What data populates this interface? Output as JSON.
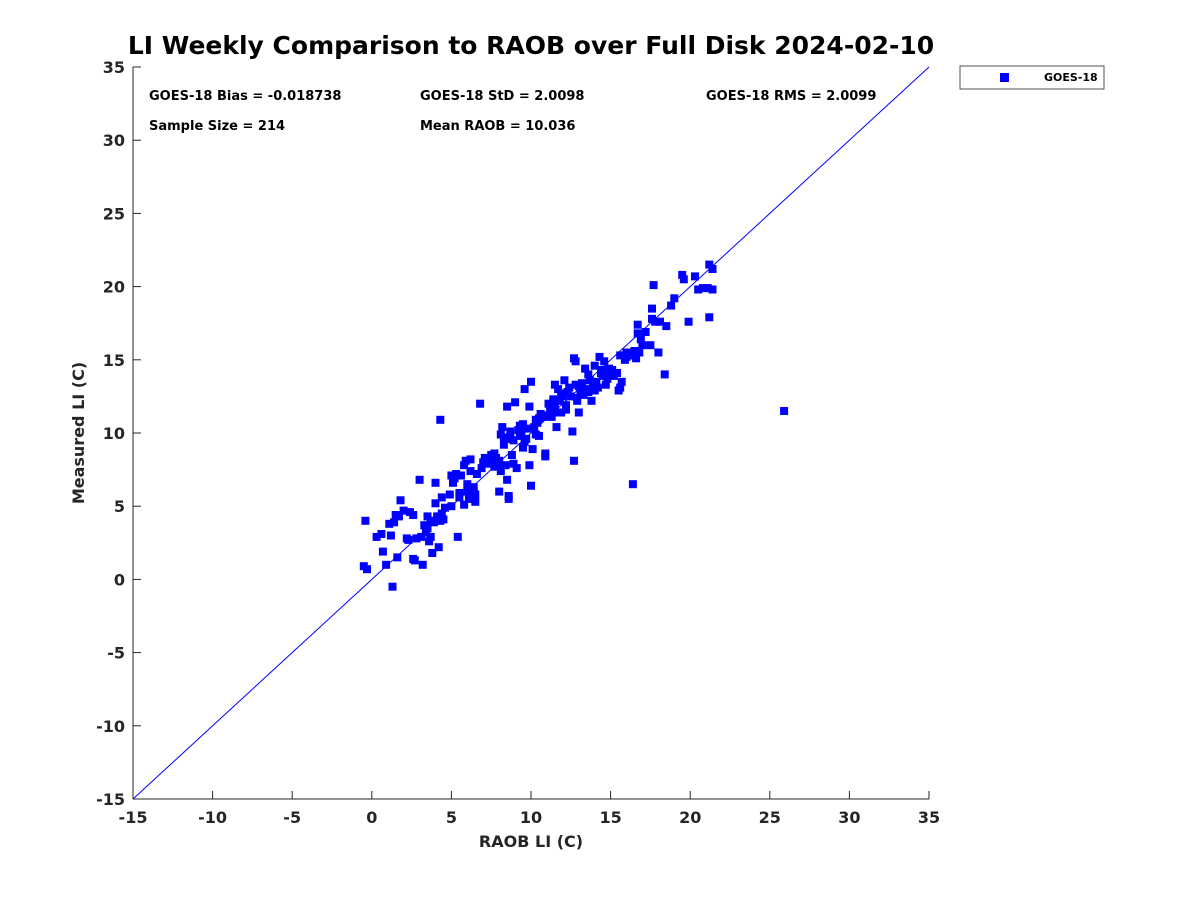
{
  "chart_data": {
    "type": "scatter",
    "title": "LI Weekly Comparison to RAOB over Full Disk 2024-02-10",
    "xlabel": "RAOB LI (C)",
    "ylabel": "Measured LI (C)",
    "xlim": [
      -15,
      35
    ],
    "ylim": [
      -15,
      35
    ],
    "xticks": [
      -15,
      -10,
      -5,
      0,
      5,
      10,
      15,
      20,
      25,
      30,
      35
    ],
    "yticks": [
      -15,
      -10,
      -5,
      0,
      5,
      10,
      15,
      20,
      25,
      30,
      35
    ],
    "grid": false,
    "legend_position": "top-right (outside axes)",
    "reference_line": {
      "from": [
        -15,
        -15
      ],
      "to": [
        35,
        35
      ],
      "color": "#0000ff"
    },
    "marker_color": "#0000ff",
    "stats": {
      "bias": "GOES-18 Bias = -0.018738",
      "std": "GOES-18 StD = 2.0098",
      "rms": "GOES-18 RMS = 2.0099",
      "sample_size": "Sample Size = 214",
      "mean_raob": "Mean RAOB = 10.036"
    },
    "series": [
      {
        "name": "GOES-18",
        "color": "#0000ff",
        "points": [
          [
            -0.5,
            0.9
          ],
          [
            -0.3,
            0.7
          ],
          [
            -0.4,
            4.0
          ],
          [
            0.3,
            2.9
          ],
          [
            0.6,
            3.1
          ],
          [
            0.7,
            1.9
          ],
          [
            0.9,
            1.0
          ],
          [
            1.1,
            3.8
          ],
          [
            1.2,
            3.0
          ],
          [
            1.3,
            -0.5
          ],
          [
            1.4,
            3.9
          ],
          [
            1.5,
            4.4
          ],
          [
            1.6,
            1.5
          ],
          [
            1.7,
            4.3
          ],
          [
            1.8,
            5.4
          ],
          [
            2.0,
            4.7
          ],
          [
            2.3,
            2.7
          ],
          [
            2.4,
            4.6
          ],
          [
            2.6,
            4.4
          ],
          [
            2.6,
            1.4
          ],
          [
            2.7,
            1.3
          ],
          [
            2.8,
            2.8
          ],
          [
            3.0,
            6.8
          ],
          [
            3.1,
            2.9
          ],
          [
            3.2,
            1.0
          ],
          [
            3.3,
            3.7
          ],
          [
            3.4,
            3.2
          ],
          [
            3.5,
            4.3
          ],
          [
            3.6,
            2.6
          ],
          [
            3.7,
            2.9
          ],
          [
            3.7,
            4.0
          ],
          [
            3.8,
            1.8
          ],
          [
            3.9,
            3.9
          ],
          [
            4.0,
            5.2
          ],
          [
            4.0,
            6.6
          ],
          [
            4.1,
            4.3
          ],
          [
            4.2,
            2.2
          ],
          [
            4.3,
            4.0
          ],
          [
            4.3,
            10.9
          ],
          [
            4.4,
            4.5
          ],
          [
            4.5,
            4.1
          ],
          [
            4.9,
            5.8
          ],
          [
            5.0,
            5.0
          ],
          [
            5.0,
            7.1
          ],
          [
            5.1,
            6.6
          ],
          [
            5.2,
            6.9
          ],
          [
            5.3,
            7.2
          ],
          [
            5.5,
            5.6
          ],
          [
            5.4,
            2.9
          ],
          [
            5.6,
            7.1
          ],
          [
            5.8,
            5.1
          ],
          [
            5.8,
            7.8
          ],
          [
            5.9,
            8.1
          ],
          [
            6.0,
            6.0
          ],
          [
            6.1,
            5.5
          ],
          [
            6.2,
            7.4
          ],
          [
            6.2,
            8.2
          ],
          [
            6.3,
            5.7
          ],
          [
            6.4,
            5.9
          ],
          [
            6.4,
            6.3
          ],
          [
            6.5,
            5.3
          ],
          [
            6.5,
            5.8
          ],
          [
            6.6,
            7.2
          ],
          [
            6.8,
            12.0
          ],
          [
            7.0,
            8.0
          ],
          [
            7.1,
            8.3
          ],
          [
            7.3,
            8.1
          ],
          [
            7.4,
            7.9
          ],
          [
            7.5,
            8.5
          ],
          [
            7.6,
            8.0
          ],
          [
            7.7,
            7.7
          ],
          [
            7.8,
            8.3
          ],
          [
            7.9,
            7.9
          ],
          [
            8.0,
            8.1
          ],
          [
            8.0,
            6.0
          ],
          [
            8.1,
            7.4
          ],
          [
            8.1,
            9.9
          ],
          [
            8.2,
            10.4
          ],
          [
            8.3,
            9.2
          ],
          [
            8.4,
            7.8
          ],
          [
            8.5,
            11.8
          ],
          [
            8.5,
            6.8
          ],
          [
            8.6,
            5.5
          ],
          [
            8.6,
            5.7
          ],
          [
            8.7,
            9.6
          ],
          [
            8.7,
            10.1
          ],
          [
            8.8,
            8.5
          ],
          [
            8.9,
            7.9
          ],
          [
            9.0,
            12.1
          ],
          [
            9.1,
            7.6
          ],
          [
            9.2,
            10.2
          ],
          [
            9.3,
            10.0
          ],
          [
            9.4,
            9.8
          ],
          [
            9.5,
            10.6
          ],
          [
            9.5,
            9.0
          ],
          [
            9.6,
            13.0
          ],
          [
            9.7,
            9.6
          ],
          [
            9.8,
            10.3
          ],
          [
            9.9,
            7.8
          ],
          [
            9.9,
            11.8
          ],
          [
            10.0,
            13.5
          ],
          [
            10.0,
            6.4
          ],
          [
            10.1,
            8.9
          ],
          [
            10.2,
            10.4
          ],
          [
            10.3,
            10.9
          ],
          [
            10.4,
            10.7
          ],
          [
            10.5,
            9.8
          ],
          [
            10.6,
            11.3
          ],
          [
            10.8,
            11.1
          ],
          [
            10.9,
            8.6
          ],
          [
            10.9,
            8.4
          ],
          [
            11.0,
            11.2
          ],
          [
            11.2,
            11.5
          ],
          [
            11.3,
            11.1
          ],
          [
            11.4,
            12.3
          ],
          [
            11.5,
            11.9
          ],
          [
            11.5,
            13.3
          ],
          [
            11.6,
            11.4
          ],
          [
            11.6,
            10.4
          ],
          [
            11.7,
            13.0
          ],
          [
            11.8,
            12.2
          ],
          [
            11.9,
            11.4
          ],
          [
            12.0,
            12.5
          ],
          [
            12.1,
            13.6
          ],
          [
            12.2,
            11.6
          ],
          [
            12.2,
            11.9
          ],
          [
            12.3,
            12.8
          ],
          [
            12.4,
            13.1
          ],
          [
            12.5,
            12.5
          ],
          [
            12.6,
            10.1
          ],
          [
            12.7,
            8.1
          ],
          [
            12.7,
            15.1
          ],
          [
            12.8,
            14.9
          ],
          [
            12.9,
            12.2
          ],
          [
            13.0,
            11.4
          ],
          [
            13.0,
            13.2
          ],
          [
            13.1,
            12.7
          ],
          [
            13.2,
            13.4
          ],
          [
            13.3,
            12.6
          ],
          [
            13.4,
            14.4
          ],
          [
            13.5,
            13.0
          ],
          [
            13.6,
            12.8
          ],
          [
            13.7,
            13.6
          ],
          [
            13.8,
            12.2
          ],
          [
            13.9,
            13.3
          ],
          [
            14.0,
            12.9
          ],
          [
            14.0,
            14.6
          ],
          [
            14.1,
            13.5
          ],
          [
            14.2,
            13.1
          ],
          [
            14.3,
            15.2
          ],
          [
            14.4,
            14.1
          ],
          [
            14.5,
            13.9
          ],
          [
            14.6,
            14.9
          ],
          [
            14.7,
            13.3
          ],
          [
            14.8,
            13.7
          ],
          [
            14.9,
            14.4
          ],
          [
            15.0,
            14.0
          ],
          [
            15.1,
            14.3
          ],
          [
            15.2,
            13.9
          ],
          [
            15.4,
            14.1
          ],
          [
            15.5,
            12.9
          ],
          [
            15.6,
            13.1
          ],
          [
            15.6,
            15.3
          ],
          [
            15.7,
            13.5
          ],
          [
            16.0,
            15.2
          ],
          [
            16.0,
            15.5
          ],
          [
            16.3,
            15.3
          ],
          [
            16.4,
            6.5
          ],
          [
            16.5,
            15.6
          ],
          [
            16.6,
            15.1
          ],
          [
            16.7,
            17.4
          ],
          [
            16.7,
            16.8
          ],
          [
            16.8,
            15.5
          ],
          [
            17.0,
            16.0
          ],
          [
            17.2,
            16.9
          ],
          [
            17.5,
            16.0
          ],
          [
            17.6,
            17.8
          ],
          [
            17.6,
            18.5
          ],
          [
            17.7,
            20.1
          ],
          [
            17.8,
            17.6
          ],
          [
            18.0,
            15.5
          ],
          [
            18.1,
            17.6
          ],
          [
            18.4,
            14.0
          ],
          [
            18.5,
            17.3
          ],
          [
            18.8,
            18.7
          ],
          [
            19.0,
            19.2
          ],
          [
            19.5,
            20.8
          ],
          [
            19.6,
            20.5
          ],
          [
            19.9,
            17.6
          ],
          [
            20.3,
            20.7
          ],
          [
            20.5,
            19.8
          ],
          [
            20.8,
            19.9
          ],
          [
            21.1,
            19.9
          ],
          [
            21.2,
            21.5
          ],
          [
            21.2,
            17.9
          ],
          [
            21.4,
            21.2
          ],
          [
            21.4,
            19.8
          ],
          [
            25.9,
            11.5
          ],
          [
            12.9,
            12.4
          ],
          [
            9.3,
            10.5
          ],
          [
            8.3,
            9.7
          ],
          [
            7.2,
            8.0
          ],
          [
            6.0,
            6.5
          ],
          [
            4.6,
            4.9
          ],
          [
            3.5,
            3.5
          ],
          [
            2.2,
            2.8
          ],
          [
            11.1,
            12.0
          ],
          [
            14.4,
            14.3
          ],
          [
            10.3,
            9.9
          ],
          [
            12.8,
            13.3
          ],
          [
            8.9,
            9.5
          ],
          [
            15.9,
            15.0
          ],
          [
            13.6,
            14.0
          ],
          [
            6.9,
            7.6
          ],
          [
            5.5,
            5.9
          ],
          [
            16.9,
            16.4
          ],
          [
            9.6,
            9.4
          ],
          [
            11.9,
            12.7
          ],
          [
            7.7,
            8.6
          ],
          [
            10.5,
            11.0
          ],
          [
            13.2,
            12.9
          ],
          [
            4.4,
            5.6
          ]
        ]
      }
    ]
  }
}
